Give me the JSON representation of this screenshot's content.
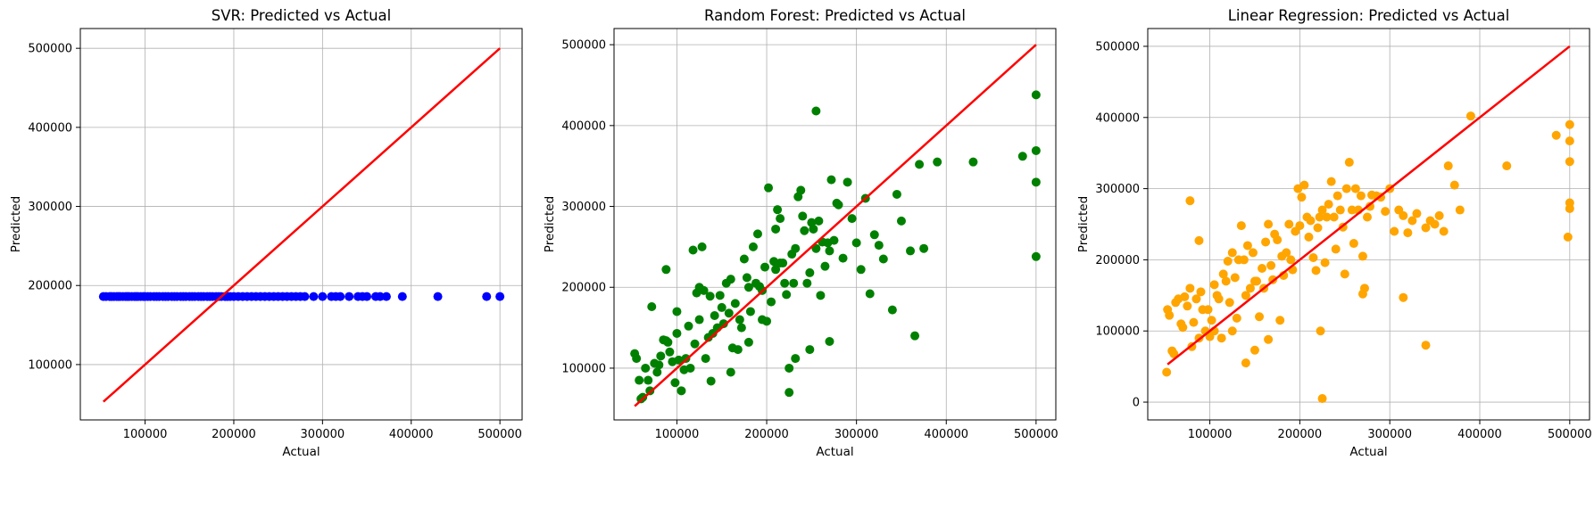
{
  "chart_data": [
    {
      "type": "scatter",
      "title": "SVR: Predicted vs Actual",
      "xlabel": "Actual",
      "ylabel": "Predicted",
      "xlim": [
        27000,
        525000
      ],
      "ylim": [
        30000,
        525000
      ],
      "xticks": [
        100000,
        200000,
        300000,
        400000,
        500000
      ],
      "yticks": [
        100000,
        200000,
        300000,
        400000,
        500000
      ],
      "grid": true,
      "point_color": "#0000ff",
      "line_color": "#ff0000",
      "reference_line": [
        [
          53000,
          53000
        ],
        [
          500000,
          500000
        ]
      ],
      "series": [
        {
          "x": [
            53000,
            56000,
            60000,
            62000,
            65000,
            68000,
            70000,
            72000,
            75000,
            78000,
            80000,
            82000,
            85000,
            88000,
            90000,
            92000,
            95000,
            98000,
            100000,
            103000,
            106000,
            110000,
            113000,
            116000,
            120000,
            123000,
            126000,
            130000,
            133000,
            136000,
            140000,
            143000,
            146000,
            150000,
            153000,
            156000,
            160000,
            163000,
            166000,
            170000,
            173000,
            176000,
            180000,
            183000,
            186000,
            190000,
            193000,
            196000,
            200000,
            205000,
            210000,
            215000,
            220000,
            225000,
            230000,
            235000,
            240000,
            245000,
            250000,
            255000,
            260000,
            265000,
            270000,
            275000,
            280000,
            290000,
            300000,
            310000,
            315000,
            320000,
            330000,
            340000,
            345000,
            350000,
            360000,
            365000,
            372000,
            390000,
            430000,
            485000,
            500000
          ],
          "y": [
            186000,
            186000,
            186000,
            186000,
            186000,
            186000,
            186000,
            186000,
            186000,
            186000,
            186000,
            186000,
            186000,
            186000,
            186000,
            186000,
            186000,
            186000,
            186000,
            186000,
            186000,
            186000,
            186000,
            186000,
            186000,
            186000,
            186000,
            186000,
            186000,
            186000,
            186000,
            186000,
            186000,
            186000,
            186000,
            186000,
            186000,
            186000,
            186000,
            186000,
            186000,
            186000,
            186000,
            186000,
            186000,
            186000,
            186000,
            186000,
            186000,
            186000,
            186000,
            186000,
            186000,
            186000,
            186000,
            186000,
            186000,
            186000,
            186000,
            186000,
            186000,
            186000,
            186000,
            186000,
            186000,
            186000,
            186000,
            186000,
            186000,
            186000,
            186000,
            186000,
            186000,
            186000,
            186000,
            186000,
            186000,
            186000,
            186000,
            186000,
            186000
          ]
        }
      ]
    },
    {
      "type": "scatter",
      "title": "Random Forest: Predicted vs Actual",
      "xlabel": "Actual",
      "ylabel": "Predicted",
      "xlim": [
        30000,
        522000
      ],
      "ylim": [
        36000,
        520000
      ],
      "xticks": [
        100000,
        200000,
        300000,
        400000,
        500000
      ],
      "yticks": [
        100000,
        200000,
        300000,
        400000,
        500000
      ],
      "grid": true,
      "point_color": "#008000",
      "line_color": "#ff0000",
      "reference_line": [
        [
          53000,
          53000
        ],
        [
          500000,
          500000
        ]
      ],
      "series": [
        {
          "x": [
            53000,
            55000,
            58000,
            60000,
            62000,
            65000,
            68000,
            70000,
            72000,
            75000,
            78000,
            80000,
            82000,
            85000,
            88000,
            90000,
            92000,
            95000,
            98000,
            100000,
            102000,
            105000,
            108000,
            110000,
            113000,
            115000,
            118000,
            120000,
            122000,
            125000,
            128000,
            130000,
            132000,
            135000,
            138000,
            140000,
            142000,
            145000,
            148000,
            150000,
            152000,
            155000,
            158000,
            160000,
            162000,
            165000,
            168000,
            170000,
            172000,
            175000,
            178000,
            180000,
            182000,
            185000,
            188000,
            190000,
            192000,
            195000,
            198000,
            200000,
            202000,
            205000,
            208000,
            210000,
            212000,
            215000,
            218000,
            220000,
            222000,
            225000,
            228000,
            230000,
            232000,
            235000,
            238000,
            240000,
            242000,
            245000,
            248000,
            250000,
            252000,
            255000,
            258000,
            260000,
            262000,
            265000,
            268000,
            270000,
            272000,
            275000,
            278000,
            280000,
            285000,
            290000,
            295000,
            300000,
            305000,
            310000,
            315000,
            320000,
            325000,
            330000,
            340000,
            345000,
            350000,
            360000,
            365000,
            370000,
            375000,
            390000,
            430000,
            485000,
            500000,
            500000,
            500000,
            500000,
            88000,
            100000,
            125000,
            137000,
            210000,
            255000,
            270000,
            225000,
            232000,
            160000,
            180000,
            248000,
            195000,
            215000
          ],
          "y": [
            118000,
            112000,
            85000,
            62000,
            64000,
            100000,
            85000,
            72000,
            176000,
            106000,
            95000,
            104000,
            115000,
            135000,
            222000,
            132000,
            120000,
            108000,
            82000,
            170000,
            110000,
            72000,
            98000,
            112000,
            152000,
            100000,
            246000,
            130000,
            193000,
            160000,
            250000,
            196000,
            112000,
            138000,
            84000,
            143000,
            165000,
            150000,
            190000,
            175000,
            155000,
            205000,
            168000,
            210000,
            125000,
            180000,
            123000,
            160000,
            150000,
            235000,
            212000,
            200000,
            170000,
            250000,
            205000,
            266000,
            201000,
            160000,
            225000,
            158000,
            323000,
            182000,
            232000,
            272000,
            296000,
            285000,
            230000,
            205000,
            191000,
            100000,
            241000,
            205000,
            248000,
            312000,
            320000,
            288000,
            270000,
            205000,
            218000,
            280000,
            272000,
            248000,
            282000,
            190000,
            256000,
            226000,
            255000,
            245000,
            333000,
            258000,
            304000,
            302000,
            236000,
            330000,
            285000,
            255000,
            222000,
            310000,
            192000,
            265000,
            252000,
            235000,
            172000,
            315000,
            282000,
            245000,
            140000,
            352000,
            248000,
            355000,
            355000,
            362000,
            438000,
            369000,
            330000,
            238000,
            134000,
            143000,
            200000,
            189000,
            222000,
            418000,
            133000,
            70000,
            112000,
            95000,
            132000,
            123000,
            196000,
            230000
          ]
        }
      ]
    },
    {
      "type": "scatter",
      "title": "Linear Regression: Predicted vs Actual",
      "xlabel": "Actual",
      "ylabel": "Predicted",
      "xlim": [
        31000,
        522000
      ],
      "ylim": [
        -25000,
        525000
      ],
      "xticks": [
        100000,
        200000,
        300000,
        400000,
        500000
      ],
      "yticks": [
        0,
        100000,
        200000,
        300000,
        400000,
        500000
      ],
      "grid": true,
      "point_color": "#ffa500",
      "line_color": "#ff0000",
      "reference_line": [
        [
          53000,
          53000
        ],
        [
          500000,
          500000
        ]
      ],
      "series": [
        {
          "x": [
            52000,
            53000,
            55000,
            58000,
            60000,
            62000,
            65000,
            68000,
            70000,
            72000,
            75000,
            78000,
            80000,
            82000,
            85000,
            88000,
            90000,
            92000,
            95000,
            98000,
            100000,
            102000,
            105000,
            108000,
            110000,
            113000,
            115000,
            118000,
            120000,
            122000,
            125000,
            128000,
            130000,
            132000,
            135000,
            138000,
            140000,
            142000,
            145000,
            148000,
            150000,
            152000,
            155000,
            158000,
            160000,
            162000,
            165000,
            168000,
            170000,
            172000,
            175000,
            178000,
            180000,
            182000,
            185000,
            188000,
            190000,
            192000,
            195000,
            198000,
            200000,
            202000,
            205000,
            208000,
            210000,
            212000,
            215000,
            218000,
            220000,
            222000,
            225000,
            228000,
            230000,
            232000,
            235000,
            238000,
            240000,
            242000,
            245000,
            248000,
            250000,
            252000,
            255000,
            258000,
            260000,
            262000,
            265000,
            268000,
            270000,
            272000,
            275000,
            278000,
            280000,
            285000,
            290000,
            295000,
            300000,
            305000,
            310000,
            315000,
            320000,
            325000,
            330000,
            340000,
            345000,
            350000,
            355000,
            360000,
            365000,
            372000,
            378000,
            390000,
            430000,
            485000,
            498000,
            500000,
            500000,
            500000,
            500000,
            500000,
            78000,
            88000,
            125000,
            140000,
            165000,
            225000,
            223000,
            270000,
            340000,
            315000,
            105000,
            150000
          ],
          "y": [
            42000,
            130000,
            122000,
            72000,
            68000,
            140000,
            145000,
            110000,
            105000,
            148000,
            135000,
            160000,
            78000,
            112000,
            145000,
            90000,
            155000,
            130000,
            100000,
            130000,
            92000,
            115000,
            165000,
            150000,
            145000,
            90000,
            180000,
            170000,
            198000,
            140000,
            210000,
            175000,
            118000,
            200000,
            248000,
            200000,
            150000,
            220000,
            160000,
            210000,
            170000,
            170000,
            120000,
            188000,
            160000,
            225000,
            250000,
            192000,
            172000,
            236000,
            228000,
            115000,
            205000,
            178000,
            210000,
            250000,
            200000,
            186000,
            240000,
            300000,
            248000,
            288000,
            305000,
            260000,
            232000,
            255000,
            203000,
            185000,
            245000,
            260000,
            270000,
            196000,
            260000,
            278000,
            310000,
            260000,
            215000,
            290000,
            270000,
            246000,
            180000,
            300000,
            337000,
            270000,
            223000,
            300000,
            270000,
            290000,
            205000,
            160000,
            260000,
            275000,
            291000,
            290000,
            288000,
            268000,
            300000,
            240000,
            270000,
            262000,
            238000,
            255000,
            265000,
            245000,
            255000,
            250000,
            262000,
            240000,
            332000,
            305000,
            270000,
            402000,
            332000,
            375000,
            232000,
            390000,
            367000,
            338000,
            280000,
            272000,
            283000,
            227000,
            100000,
            55000,
            88000,
            5000,
            100000,
            152000,
            80000,
            147000,
            100000,
            73000
          ]
        }
      ]
    }
  ]
}
